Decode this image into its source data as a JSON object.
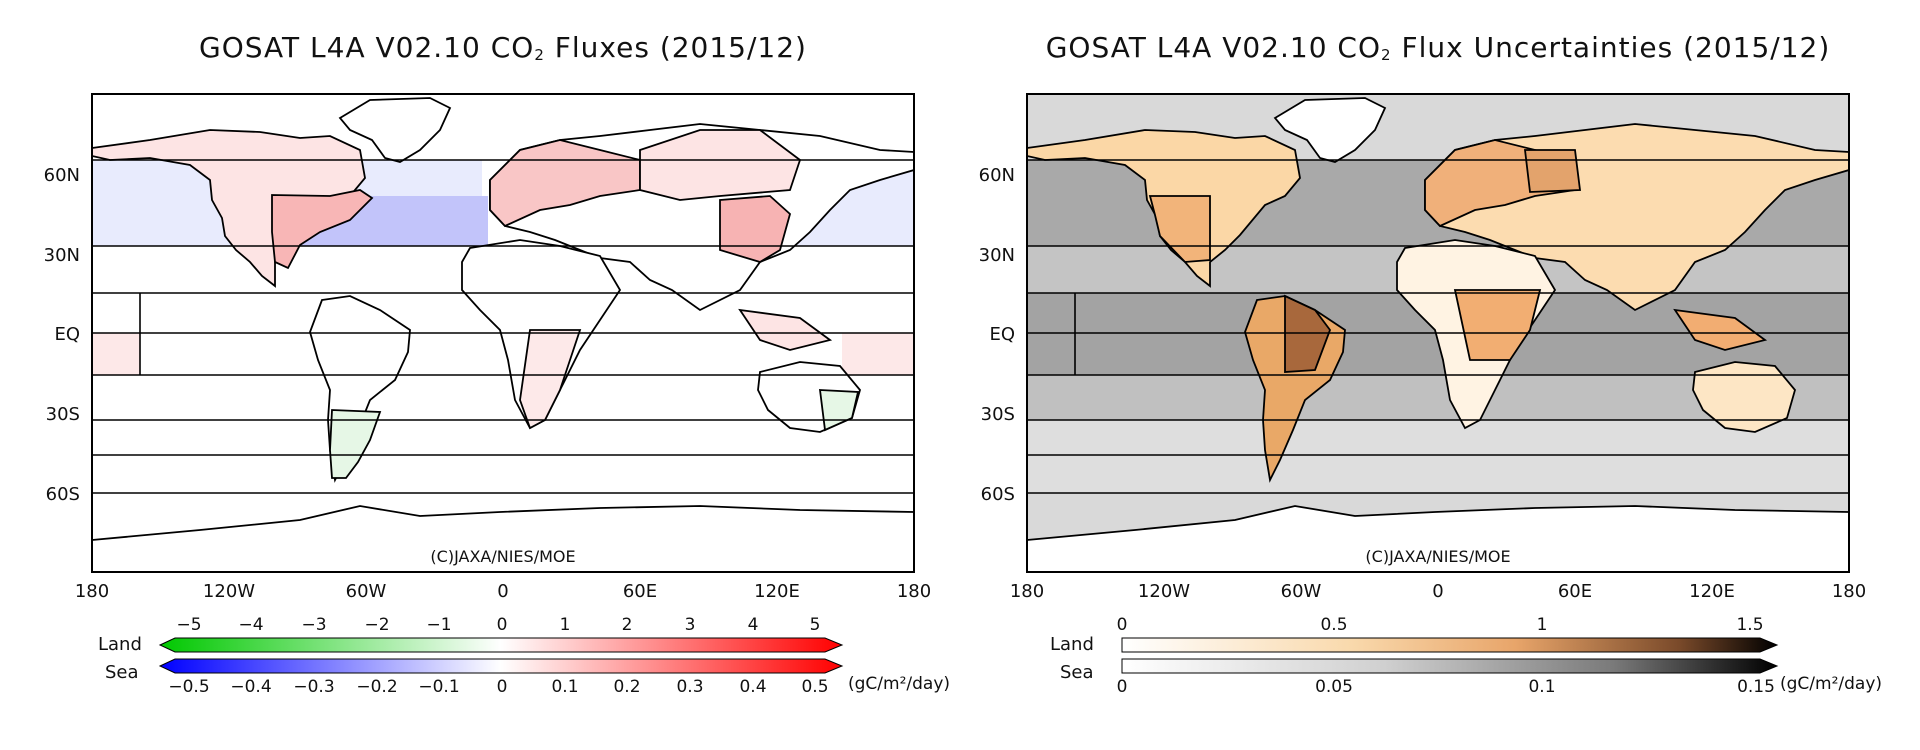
{
  "panels": [
    {
      "title_main": "GOSAT L4A V02.10 CO",
      "title_sub": "2",
      "title_rest": " Fluxes (2015/12)",
      "credit": "(C)JAXA/NIES/MOE",
      "lat_labels": [
        "60N",
        "30N",
        "EQ",
        "30S",
        "60S"
      ],
      "lon_labels": [
        "180",
        "120W",
        "60W",
        "0",
        "60E",
        "120E",
        "180"
      ],
      "legend": {
        "land_label": "Land",
        "sea_label": "Sea",
        "land_ticks": [
          "−5",
          "−4",
          "−3",
          "−2",
          "−1",
          "0",
          "1",
          "2",
          "3",
          "4",
          "5"
        ],
        "sea_ticks": [
          "−0.5",
          "−0.4",
          "−0.3",
          "−0.2",
          "−0.1",
          "0",
          "0.1",
          "0.2",
          "0.3",
          "0.4",
          "0.5"
        ],
        "unit": "(gC/m²/day)",
        "land_colors": [
          "#00c800",
          "#ffffff",
          "#ff0000"
        ],
        "sea_colors": [
          "#0000ff",
          "#ffffff",
          "#ff0000"
        ]
      }
    },
    {
      "title_main": "GOSAT L4A V02.10 CO",
      "title_sub": "2",
      "title_rest": " Flux Uncertainties (2015/12)",
      "credit": "(C)JAXA/NIES/MOE",
      "lat_labels": [
        "60N",
        "30N",
        "EQ",
        "30S",
        "60S"
      ],
      "lon_labels": [
        "180",
        "120W",
        "60W",
        "0",
        "60E",
        "120E",
        "180"
      ],
      "legend": {
        "land_label": "Land",
        "sea_label": "Sea",
        "land_ticks": [
          "0",
          "0.5",
          "1",
          "1.5"
        ],
        "sea_ticks": [
          "0",
          "0.05",
          "0.1",
          "0.15"
        ],
        "unit": "(gC/m²/day)",
        "land_colors": [
          "#ffffff",
          "#f5c48a",
          "#c98a54",
          "#000000"
        ],
        "sea_colors": [
          "#ffffff",
          "#bdbdbd",
          "#000000"
        ]
      }
    }
  ]
}
